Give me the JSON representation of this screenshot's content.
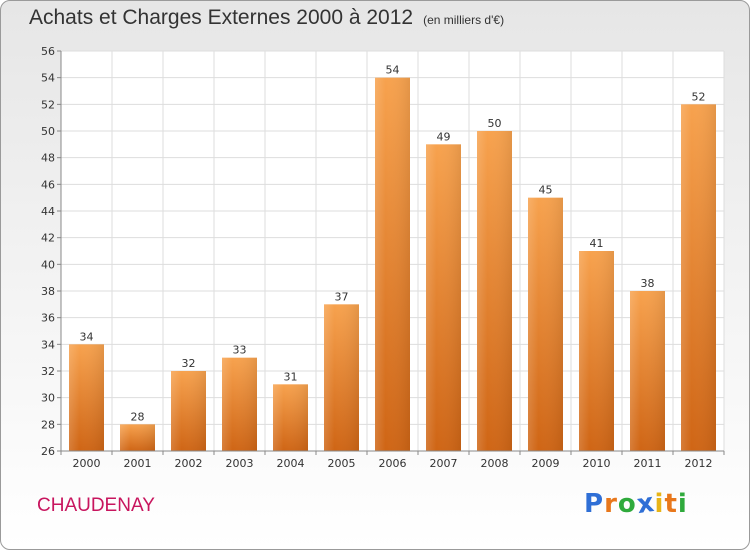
{
  "header": {
    "title": "Achats et Charges Externes 2000 à 2012",
    "subtitle": "(en milliers d'€)"
  },
  "footer": {
    "commune": "CHAUDENAY",
    "logo_letters": [
      {
        "char": "P",
        "color": "#2f6fd6"
      },
      {
        "char": "r",
        "color": "#e8771b"
      },
      {
        "char": "o",
        "color": "#2faa3c"
      },
      {
        "char": "x",
        "color": "#2f6fd6"
      },
      {
        "char": "i",
        "color": "#e8b417"
      },
      {
        "char": "t",
        "color": "#e8771b"
      },
      {
        "char": "i",
        "color": "#2faa3c"
      }
    ]
  },
  "chart_data": {
    "type": "bar",
    "categories": [
      "2000",
      "2001",
      "2002",
      "2003",
      "2004",
      "2005",
      "2006",
      "2007",
      "2008",
      "2009",
      "2010",
      "2011",
      "2012"
    ],
    "values": [
      34,
      28,
      32,
      33,
      31,
      37,
      54,
      49,
      50,
      45,
      41,
      38,
      52
    ],
    "ylim": [
      26,
      56
    ],
    "yticks": [
      26,
      28,
      30,
      32,
      34,
      36,
      38,
      40,
      42,
      44,
      46,
      48,
      50,
      52,
      54,
      56
    ],
    "grid": true,
    "bar_color_top": "#f7a24e",
    "bar_color_bottom": "#cf6515"
  }
}
